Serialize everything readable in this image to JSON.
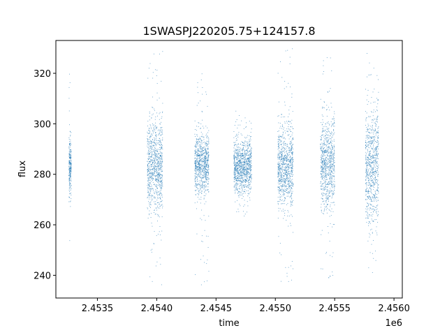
{
  "chart_data": {
    "type": "scatter",
    "title": "1SWASPJ220205.75+124157.8",
    "xlabel": "time",
    "ylabel": "flux",
    "x_offset_label": "1e6",
    "xlim": [
      2453150,
      2456070
    ],
    "ylim": [
      231,
      333
    ],
    "x_ticks": [
      2453500,
      2454000,
      2454500,
      2455000,
      2455500,
      2456000
    ],
    "x_tick_labels": [
      "2.4535",
      "2.4540",
      "2.4545",
      "2.4550",
      "2.4555",
      "2.4560"
    ],
    "y_ticks": [
      240,
      260,
      280,
      300,
      320
    ],
    "y_tick_labels": [
      "240",
      "260",
      "280",
      "300",
      "320"
    ],
    "grid": false,
    "marker_color": "#1f77b4",
    "clusters": [
      {
        "x_start": 2453260,
        "x_end": 2453280,
        "center": 283,
        "spread": 6,
        "min": 246,
        "max": 322
      },
      {
        "x_start": 2453920,
        "x_end": 2454050,
        "center": 283,
        "spread": 9,
        "min": 236,
        "max": 330
      },
      {
        "x_start": 2454320,
        "x_end": 2454440,
        "center": 284,
        "spread": 6,
        "min": 236,
        "max": 320
      },
      {
        "x_start": 2454650,
        "x_end": 2454800,
        "center": 283,
        "spread": 5,
        "min": 263,
        "max": 306
      },
      {
        "x_start": 2455020,
        "x_end": 2455150,
        "center": 283,
        "spread": 8,
        "min": 236,
        "max": 330
      },
      {
        "x_start": 2455380,
        "x_end": 2455500,
        "center": 284,
        "spread": 9,
        "min": 238,
        "max": 329
      },
      {
        "x_start": 2455760,
        "x_end": 2455870,
        "center": 283,
        "spread": 11,
        "min": 236,
        "max": 330
      }
    ]
  }
}
